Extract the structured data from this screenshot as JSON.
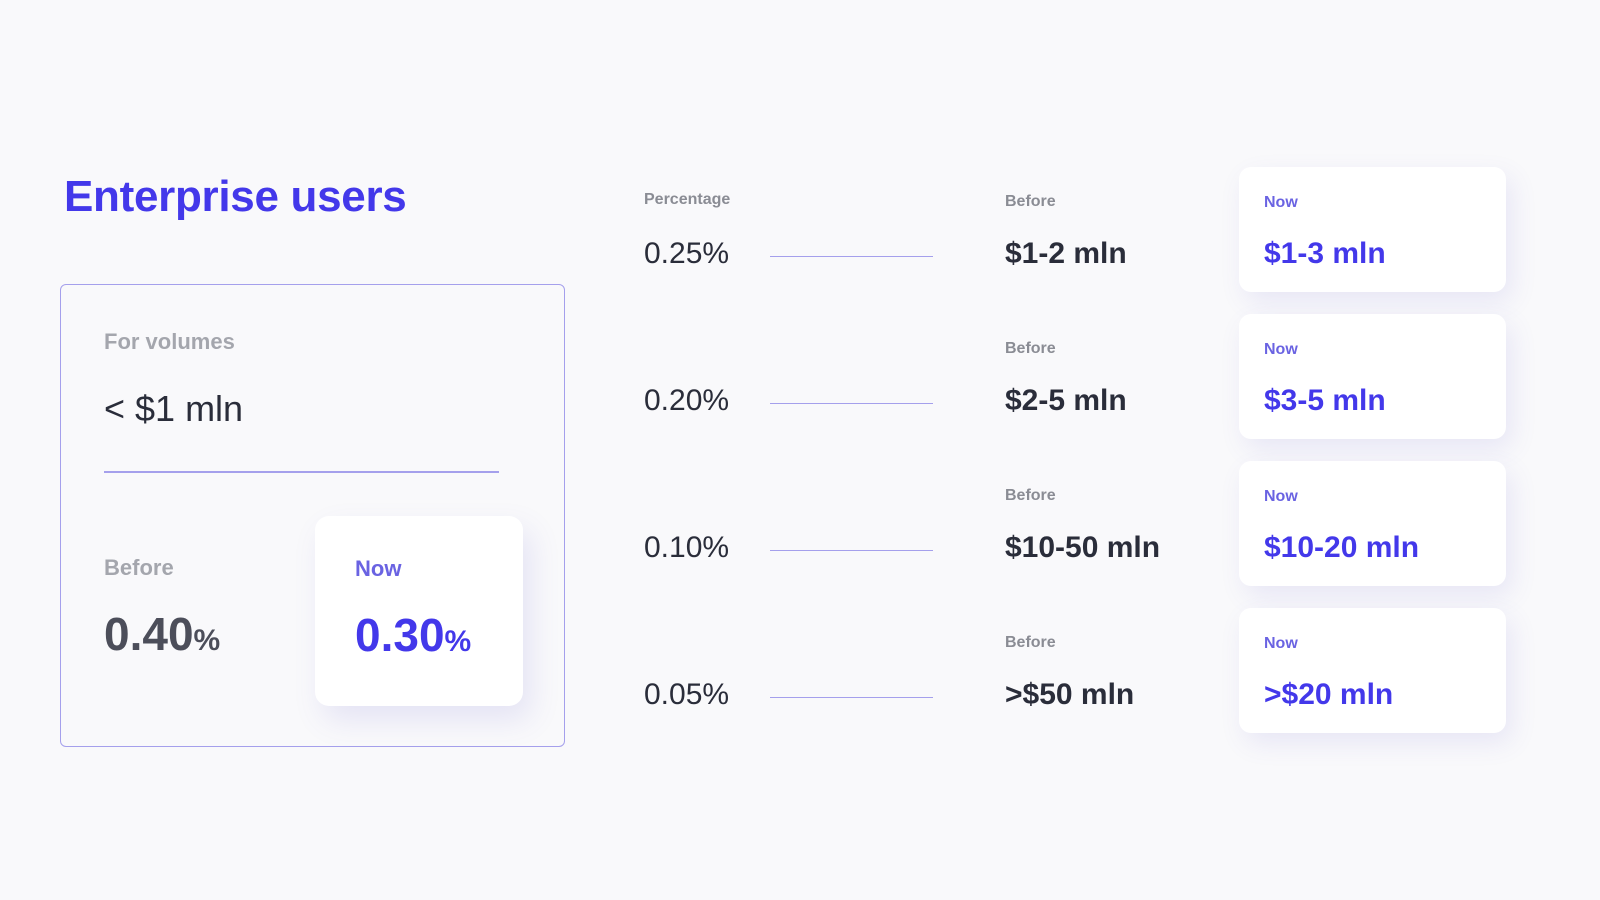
{
  "title": "Enterprise users",
  "volume_card": {
    "label": "For volumes",
    "value": "< $1 mln",
    "before_label": "Before",
    "before_value": "0.40",
    "now_label": "Now",
    "now_value": "0.30",
    "percent_sign": "%"
  },
  "tiers_header": {
    "percentage_label": "Percentage"
  },
  "tiers": [
    {
      "percentage": "0.25%",
      "before_label": "Before",
      "before_value": "$1-2 mln",
      "now_label": "Now",
      "now_value": "$1-3 mln"
    },
    {
      "percentage": "0.20%",
      "before_label": "Before",
      "before_value": "$2-5 mln",
      "now_label": "Now",
      "now_value": "$3-5 mln"
    },
    {
      "percentage": "0.10%",
      "before_label": "Before",
      "before_value": "$10-50 mln",
      "now_label": "Now",
      "now_value": "$10-20 mln"
    },
    {
      "percentage": "0.05%",
      "before_label": "Before",
      "before_value": ">$50 mln",
      "now_label": "Now",
      "now_value": ">$20 mln"
    }
  ],
  "colors": {
    "accent": "#4338ea",
    "accent_light": "#6a63e2",
    "border": "#a5a0ec",
    "text_dark": "#2a2d3a",
    "text_muted": "#a4a6ad",
    "background": "#f9f9fb"
  }
}
